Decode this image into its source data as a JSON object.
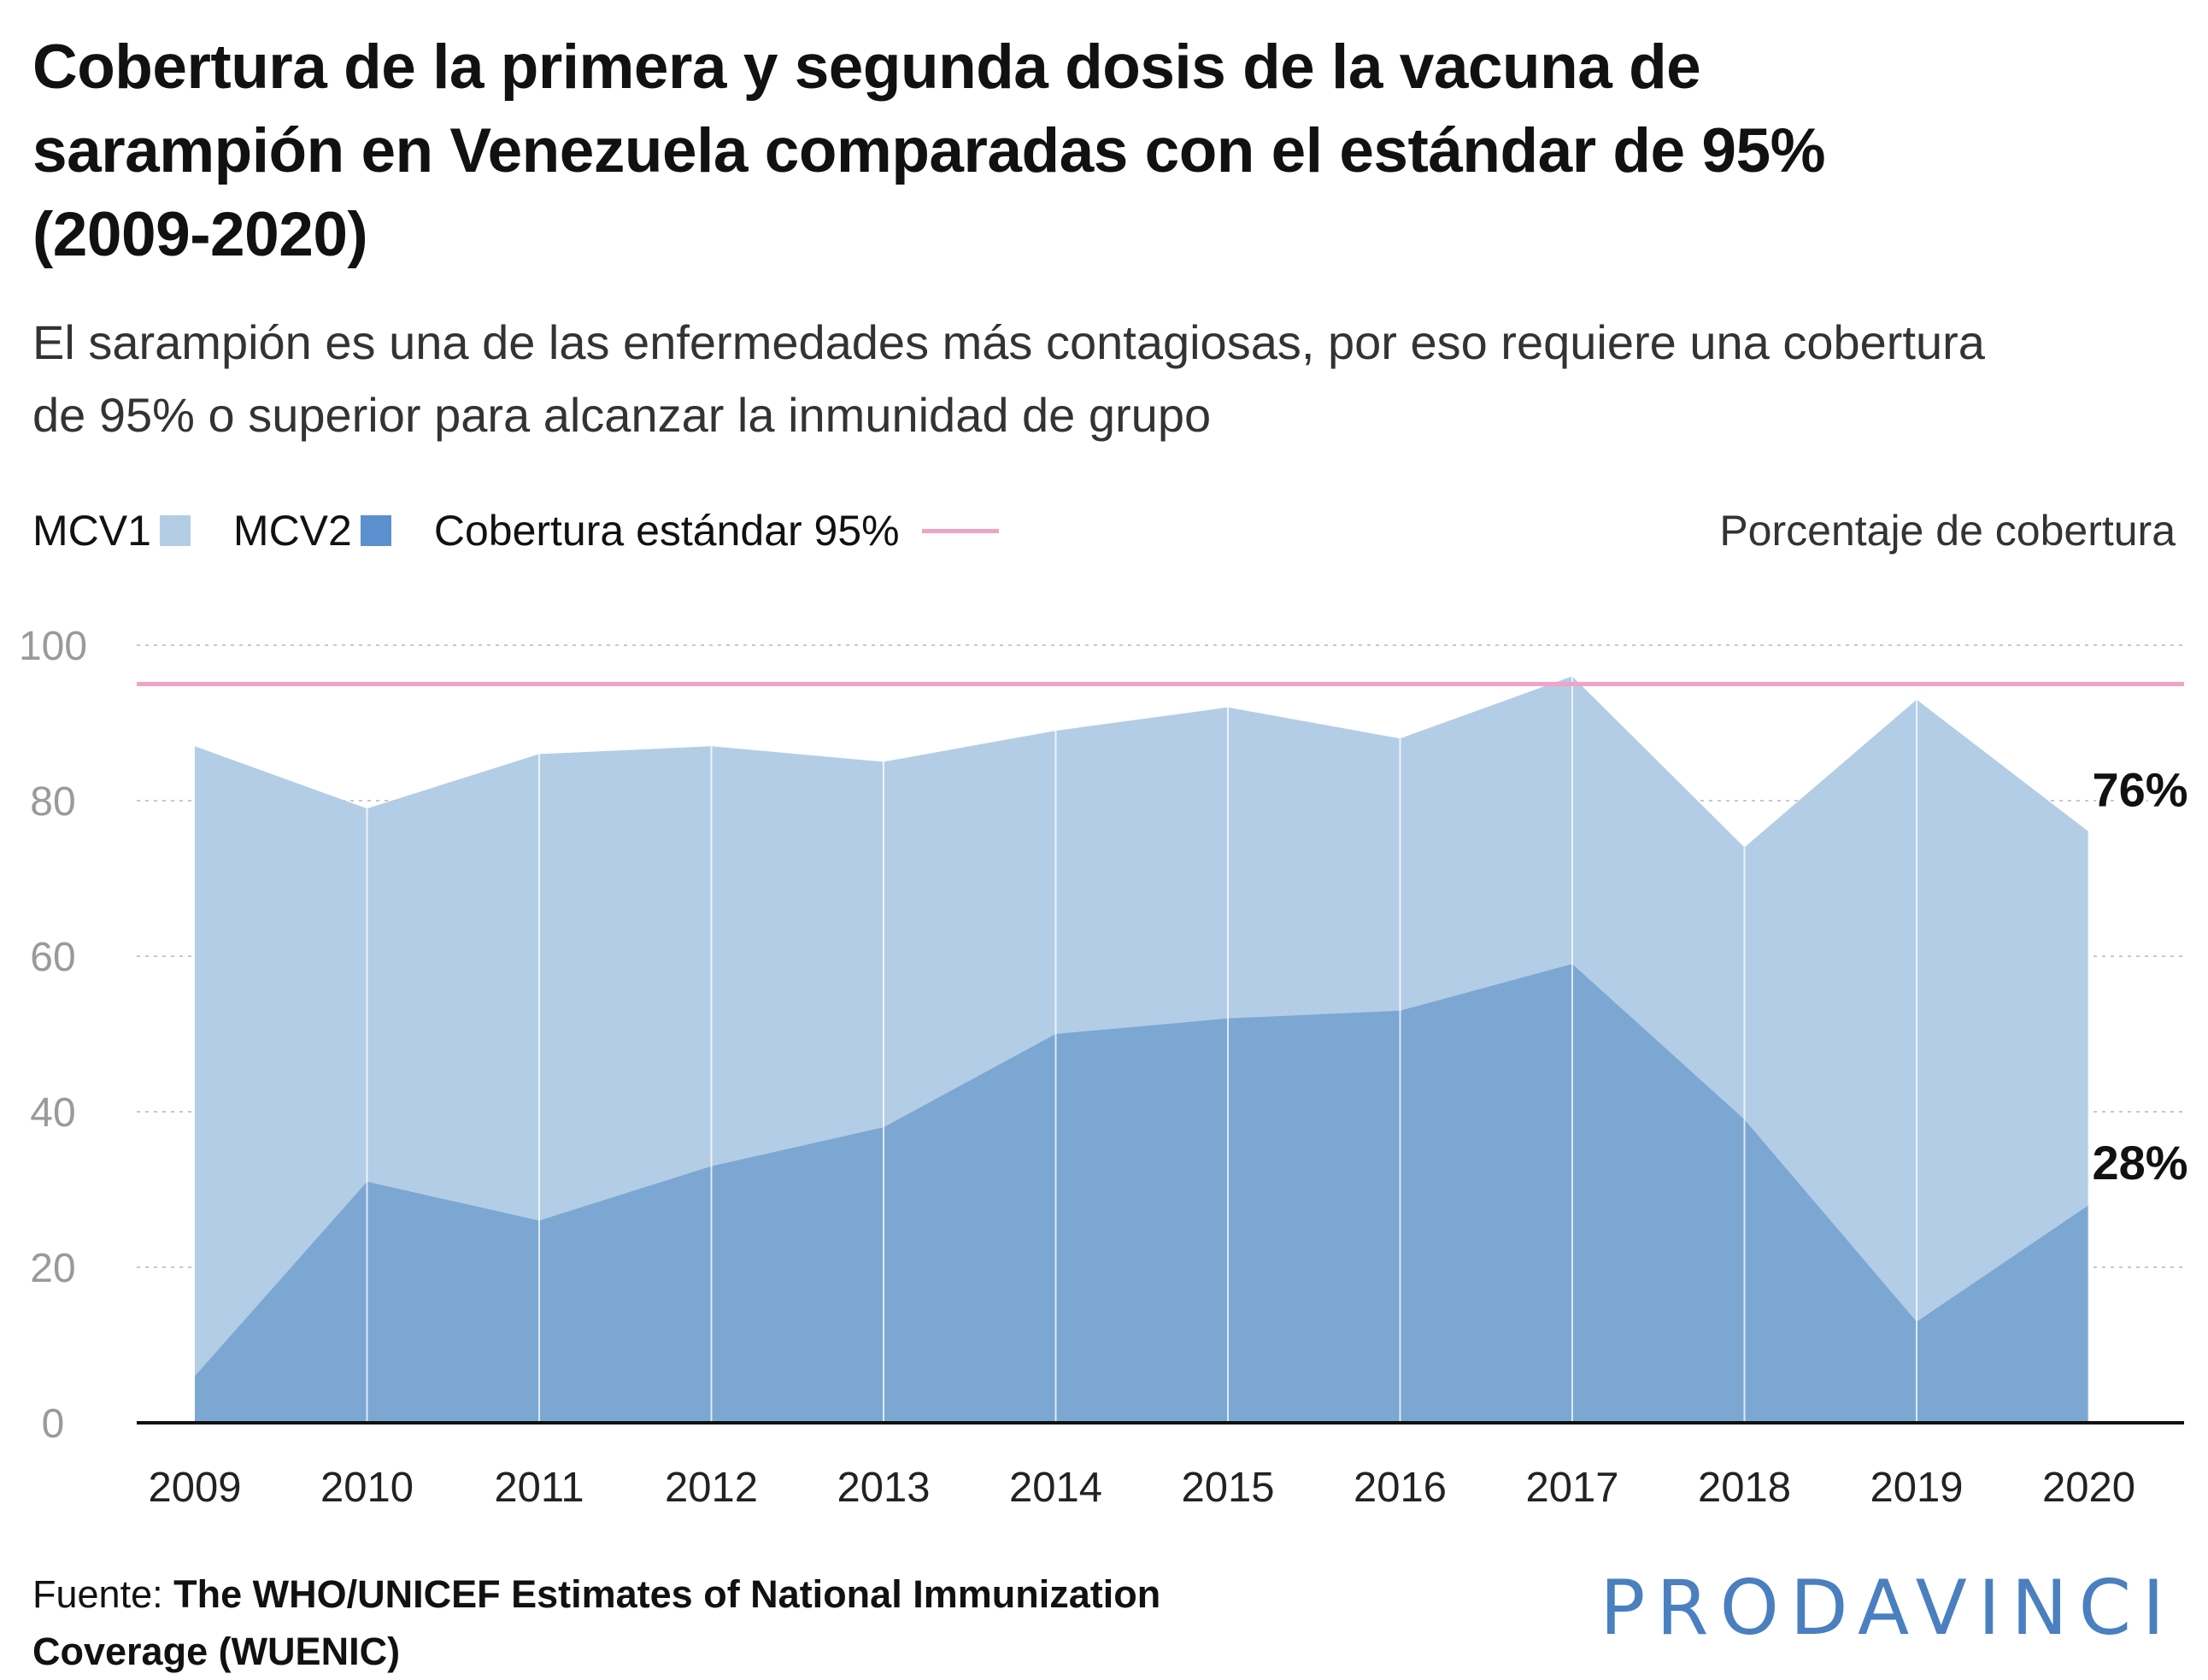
{
  "title": "Cobertura de la primera y segunda dosis de la vacuna de sarampión en Venezuela comparadas con el estándar de 95% (2009-2020)",
  "subtitle": "El sarampión es una de las enfermedades más contagiosas, por eso requiere una cobertura de 95% o superior para alcanzar la inmunidad de grupo",
  "legend": {
    "mcv1": "MCV1",
    "mcv2": "MCV2",
    "standard": "Cobertura estándar 95%"
  },
  "unit_label": "Porcentaje de cobertura",
  "source": {
    "prefix": "Fuente: ",
    "text": "The WHO/UNICEF Estimates of National Immunization Coverage (WUENIC)"
  },
  "logo": "PRODAVINCI",
  "colors": {
    "mcv1": "#b3cde6",
    "mcv2": "#7ba7d2",
    "standard": "#f2a2c5",
    "mcv2_legend": "#5b8fcd"
  },
  "chart_data": {
    "type": "area",
    "x": [
      "2009",
      "2010",
      "2011",
      "2012",
      "2013",
      "2014",
      "2015",
      "2016",
      "2017",
      "2018",
      "2019",
      "2020"
    ],
    "series": [
      {
        "name": "MCV1",
        "values": [
          87,
          79,
          86,
          87,
          85,
          89,
          92,
          88,
          96,
          74,
          93,
          76
        ]
      },
      {
        "name": "MCV2",
        "values": [
          6,
          31,
          26,
          33,
          38,
          50,
          52,
          53,
          59,
          39,
          13,
          28
        ]
      }
    ],
    "reference_line": {
      "name": "Cobertura estándar 95%",
      "value": 95
    },
    "ylim": [
      0,
      100
    ],
    "yticks": [
      0,
      20,
      40,
      60,
      80,
      100
    ],
    "grid": true,
    "legend_position": "top-left",
    "annotations": [
      {
        "series": "MCV1",
        "x": "2020",
        "text": "76%"
      },
      {
        "series": "MCV2",
        "x": "2020",
        "text": "28%"
      }
    ]
  }
}
